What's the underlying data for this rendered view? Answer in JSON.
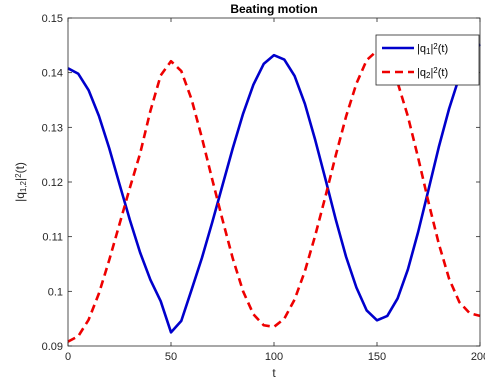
{
  "chart_data": {
    "type": "line",
    "title": "Beating motion",
    "xlabel": "t",
    "ylabel": {
      "main": "|q",
      "sub": "1,2",
      "after": "|",
      "sup": "2",
      "tail": "(t)"
    },
    "xlim": [
      0,
      200
    ],
    "ylim": [
      0.09,
      0.15
    ],
    "xticks": [
      "0",
      "50",
      "100",
      "150",
      "200"
    ],
    "yticks": [
      "0.09",
      "0.1",
      "0.11",
      "0.12",
      "0.13",
      "0.14",
      "0.15"
    ],
    "grid": false,
    "legend_position": "top-right",
    "x": [
      0,
      5,
      10,
      15,
      20,
      25,
      30,
      35,
      40,
      45,
      50,
      55,
      60,
      65,
      70,
      75,
      80,
      85,
      90,
      95,
      100,
      105,
      110,
      115,
      120,
      125,
      130,
      135,
      140,
      145,
      150,
      155,
      160,
      165,
      170,
      175,
      180,
      185,
      190,
      195,
      200
    ],
    "series": [
      {
        "name": {
          "main": "|q",
          "sub": "1",
          "after": "|",
          "sup": "2",
          "tail": "(t)"
        },
        "color": "#0000cc",
        "dash": "solid",
        "values": [
          0.1408,
          0.1398,
          0.1368,
          0.1321,
          0.1262,
          0.1196,
          0.1131,
          0.1071,
          0.1021,
          0.0982,
          0.0925,
          0.0946,
          0.1003,
          0.1061,
          0.1126,
          0.1194,
          0.1262,
          0.1325,
          0.1378,
          0.1416,
          0.1432,
          0.1424,
          0.1394,
          0.1343,
          0.1277,
          0.1205,
          0.1131,
          0.1063,
          0.1007,
          0.0965,
          0.0947,
          0.0955,
          0.0987,
          0.104,
          0.1109,
          0.1186,
          0.1264,
          0.1334,
          0.1393,
          0.1434,
          0.1452
        ]
      },
      {
        "name": {
          "main": "|q",
          "sub": "2",
          "after": "|",
          "sup": "2",
          "tail": "(t)"
        },
        "color": "#ee0000",
        "dash": "dashed",
        "values": [
          0.0908,
          0.0918,
          0.0948,
          0.0996,
          0.1057,
          0.1123,
          0.1189,
          0.1252,
          0.133,
          0.1395,
          0.1421,
          0.1403,
          0.1351,
          0.1281,
          0.1205,
          0.1131,
          0.106,
          0.1,
          0.0958,
          0.0938,
          0.0935,
          0.095,
          0.0985,
          0.1037,
          0.1102,
          0.1174,
          0.1249,
          0.132,
          0.138,
          0.1423,
          0.144,
          0.1425,
          0.1382,
          0.132,
          0.1244,
          0.1163,
          0.1087,
          0.1023,
          0.098,
          0.096,
          0.0955
        ]
      }
    ]
  }
}
